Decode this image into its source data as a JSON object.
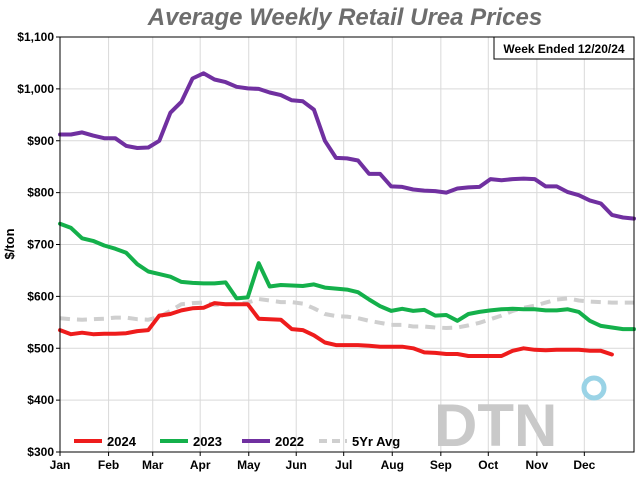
{
  "chart_data": {
    "type": "line",
    "title": "Average Weekly Retail Urea Prices",
    "annotation": "Week Ended 12/20/24",
    "ylabel": "$/ton",
    "xlabel": "",
    "ylim": [
      300,
      1100
    ],
    "yticks": [
      "$300",
      "$400",
      "$500",
      "$600",
      "$700",
      "$800",
      "$900",
      "$1,000",
      "$1,100"
    ],
    "ytick_values": [
      300,
      400,
      500,
      600,
      700,
      800,
      900,
      1000,
      1100
    ],
    "xlim": [
      0,
      52
    ],
    "xtick_labels": [
      "Jan",
      "Feb",
      "Mar",
      "Apr",
      "May",
      "Jun",
      "Jul",
      "Aug",
      "Sep",
      "Oct",
      "Nov",
      "Dec"
    ],
    "xtick_positions": [
      0,
      4.4,
      8.4,
      12.7,
      17.1,
      21.4,
      25.7,
      30.1,
      34.5,
      38.8,
      43.2,
      47.5
    ],
    "grid": true,
    "legend_position": "bottom-left",
    "watermark": "DTN",
    "series": [
      {
        "name": "2024",
        "color": "#ee1c1c",
        "dashed": false,
        "x": [
          0,
          1,
          2,
          3,
          4,
          5,
          6,
          7,
          8,
          9,
          10,
          11,
          12,
          13,
          14,
          15,
          16,
          17,
          18,
          19,
          20,
          21,
          22,
          23,
          24,
          25,
          26,
          27,
          28,
          29,
          30,
          31,
          32,
          33,
          34,
          35,
          36,
          37,
          38,
          39,
          40,
          41,
          42,
          43,
          44,
          45,
          46,
          47,
          48,
          49,
          50
        ],
        "values": [
          535,
          527,
          530,
          527,
          528,
          528,
          529,
          533,
          535,
          563,
          566,
          573,
          577,
          578,
          587,
          585,
          585,
          585,
          557,
          556,
          555,
          537,
          535,
          525,
          511,
          506,
          506,
          506,
          505,
          503,
          503,
          503,
          500,
          492,
          491,
          489,
          489,
          485,
          485,
          485,
          485,
          495,
          500,
          497,
          496,
          497,
          497,
          497,
          495,
          495,
          488
        ]
      },
      {
        "name": "2023",
        "color": "#14b04b",
        "dashed": false,
        "x": [
          0,
          1,
          2,
          3,
          4,
          5,
          6,
          7,
          8,
          9,
          10,
          11,
          12,
          13,
          14,
          15,
          16,
          17,
          18,
          19,
          20,
          21,
          22,
          23,
          24,
          25,
          26,
          27,
          28,
          29,
          30,
          31,
          32,
          33,
          34,
          35,
          36,
          37,
          38,
          39,
          40,
          41,
          42,
          43,
          44,
          45,
          46,
          47,
          48,
          49,
          50,
          51,
          52
        ],
        "values": [
          740,
          732,
          712,
          707,
          698,
          692,
          684,
          662,
          648,
          643,
          638,
          628,
          626,
          625,
          625,
          627,
          596,
          598,
          664,
          619,
          622,
          621,
          620,
          623,
          617,
          615,
          613,
          608,
          594,
          581,
          572,
          576,
          572,
          574,
          563,
          564,
          553,
          566,
          570,
          573,
          575,
          576,
          575,
          575,
          573,
          573,
          575,
          570,
          553,
          543,
          540,
          537,
          537
        ]
      },
      {
        "name": "2022",
        "color": "#7030a0",
        "dashed": false,
        "x": [
          0,
          1,
          2,
          3,
          4,
          5,
          6,
          7,
          8,
          9,
          10,
          11,
          12,
          13,
          14,
          15,
          16,
          17,
          18,
          19,
          20,
          21,
          22,
          23,
          24,
          25,
          26,
          27,
          28,
          29,
          30,
          31,
          32,
          33,
          34,
          35,
          36,
          37,
          38,
          39,
          40,
          41,
          42,
          43,
          44,
          45,
          46,
          47,
          48,
          49,
          50,
          51,
          52
        ],
        "values": [
          912,
          912,
          916,
          910,
          905,
          905,
          890,
          886,
          887,
          900,
          954,
          975,
          1020,
          1030,
          1018,
          1013,
          1004,
          1001,
          1000,
          993,
          988,
          978,
          976,
          960,
          900,
          867,
          866,
          862,
          836,
          836,
          812,
          811,
          806,
          804,
          803,
          800,
          808,
          810,
          811,
          826,
          824,
          826,
          827,
          826,
          812,
          812,
          801,
          795,
          785,
          779,
          757,
          752,
          750
        ]
      },
      {
        "name": "5Yr Avg",
        "color": "#cfcfcf",
        "dashed": true,
        "x": [
          0,
          1,
          2,
          3,
          4,
          5,
          6,
          7,
          8,
          9,
          10,
          11,
          12,
          13,
          14,
          15,
          16,
          17,
          18,
          19,
          20,
          21,
          22,
          23,
          24,
          25,
          26,
          27,
          28,
          29,
          30,
          31,
          32,
          33,
          34,
          35,
          36,
          37,
          38,
          39,
          40,
          41,
          42,
          43,
          44,
          45,
          46,
          47,
          48,
          49,
          50,
          51,
          52
        ],
        "values": [
          558,
          556,
          555,
          556,
          557,
          559,
          559,
          556,
          555,
          560,
          572,
          585,
          587,
          588,
          584,
          585,
          586,
          588,
          595,
          592,
          589,
          589,
          586,
          577,
          566,
          562,
          561,
          558,
          553,
          549,
          545,
          545,
          542,
          542,
          540,
          539,
          540,
          544,
          549,
          556,
          563,
          572,
          578,
          582,
          588,
          594,
          596,
          592,
          590,
          589,
          588,
          588,
          588
        ]
      }
    ]
  }
}
